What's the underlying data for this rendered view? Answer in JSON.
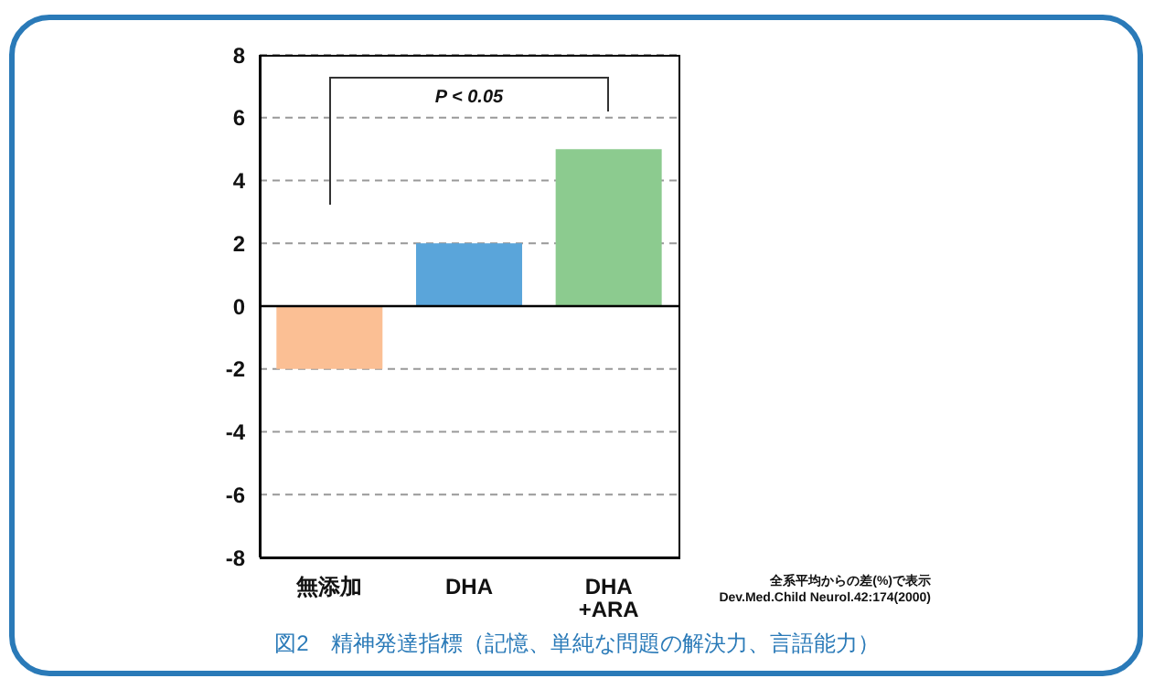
{
  "chart_data": {
    "type": "bar",
    "title": "図2　精神発達指標（記憶、単純な問題の解決力、言語能力）",
    "categories": [
      "無添加",
      "DHA",
      "DHA\n+ARA"
    ],
    "values": [
      -2,
      2,
      5
    ],
    "colors": [
      "#fbbf94",
      "#5aa5da",
      "#8ccb8f"
    ],
    "ylim": [
      -8,
      8
    ],
    "yticks": [
      -8,
      -6,
      -4,
      -2,
      0,
      2,
      4,
      6,
      8
    ],
    "grid": "y",
    "ref_lines": [
      {
        "axis": "y",
        "value": 0,
        "color": "#000000"
      }
    ],
    "annotations": [
      "P < 0.05",
      "全系平均からの差(%)で表示",
      "Dev.Med.Child Neurol.42:174(2000)"
    ]
  }
}
